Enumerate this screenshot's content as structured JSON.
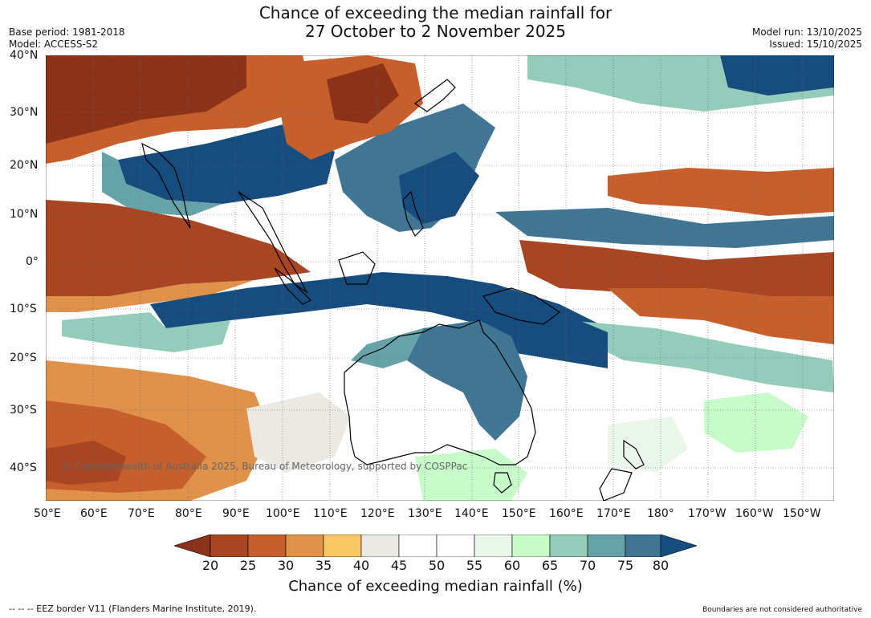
{
  "title": {
    "line1": "Chance of exceeding the median rainfall for",
    "line2": "27 October to 2 November 2025"
  },
  "meta": {
    "base_period": "Base period: 1981-2018",
    "model": "Model: ACCESS-S2",
    "model_run": "Model run: 13/10/2025",
    "issued": "Issued: 15/10/2025"
  },
  "map": {
    "copyright": "© Commonwealth of Australia 2025, Bureau of Meteorology, supported by COSPPac",
    "lat_labels": [
      "40°N",
      "30°N",
      "20°N",
      "10°N",
      "0°",
      "10°S",
      "20°S",
      "30°S",
      "40°S"
    ],
    "lon_labels": [
      "50°E",
      "60°E",
      "70°E",
      "80°E",
      "90°E",
      "100°E",
      "110°E",
      "120°E",
      "130°E",
      "140°E",
      "150°E",
      "160°E",
      "170°E",
      "180°",
      "170°W",
      "160°W",
      "150°W"
    ]
  },
  "colorbar": {
    "label": "Chance of exceeding median rainfall (%)",
    "ticks": [
      "20",
      "25",
      "30",
      "35",
      "40",
      "45",
      "50",
      "55",
      "60",
      "65",
      "70",
      "75",
      "80"
    ],
    "colors": [
      "#8c3219",
      "#a84522",
      "#c65f2c",
      "#e0914a",
      "#fcc865",
      "#ebe9e3",
      "#ffffff",
      "#ffffff",
      "#eaf6ea",
      "#c7fbc9",
      "#94ccbc",
      "#66a3a8",
      "#407594",
      "#174c7f"
    ]
  },
  "footer": {
    "eez": "--  --  -- EEZ border V11 (Flanders Marine Institute, 2019).",
    "disclaimer": "Boundaries are not considered authoritative"
  }
}
